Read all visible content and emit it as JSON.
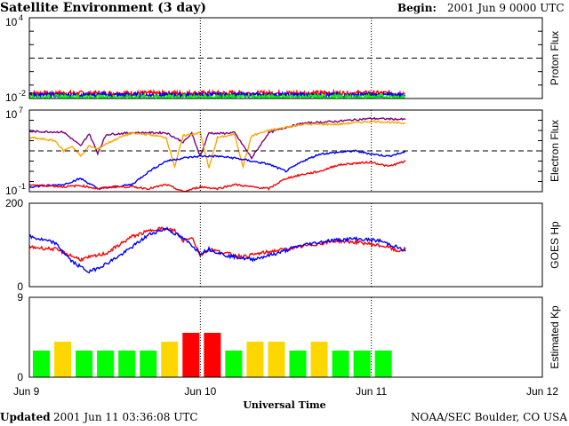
{
  "header": {
    "title": "Satellite Environment (3 day)",
    "begin_label": "Begin:",
    "begin_value": "2001 Jun 9 0000 UTC"
  },
  "footer": {
    "updated_label": "Updated",
    "updated_value": "2001 Jun 11 03:36:08 UTC",
    "credit": "NOAA/SEC Boulder, CO USA"
  },
  "colors": {
    "red": "#ff0000",
    "blue": "#0000ff",
    "green": "#00ff00",
    "orange": "#ffa500",
    "purple": "#800080",
    "kp_green": "#00ff00",
    "kp_yellow": "#ffd700",
    "kp_red": "#ff0000"
  },
  "chart_data": [
    {
      "type": "line",
      "id": "proton",
      "ylabel": "Proton Flux",
      "ylog": true,
      "ylim": [
        0.01,
        10000
      ],
      "y_tick_labels": [
        {
          "base": "10",
          "exp": "4"
        },
        {
          "base": "10",
          "exp": "-2"
        }
      ],
      "threshold": 10,
      "series": [
        {
          "color": "red",
          "level": 0.025,
          "x": [
            0,
            2.2
          ]
        },
        {
          "color": "blue",
          "level": 0.018,
          "x": [
            0,
            2.2
          ]
        },
        {
          "color": "green",
          "level": 0.013,
          "x": [
            0,
            2.2
          ]
        }
      ]
    },
    {
      "type": "line",
      "id": "electron",
      "ylabel": "Electron Flux",
      "ylog": true,
      "ylim": [
        0.1,
        10000000
      ],
      "y_tick_labels": [
        {
          "base": "10",
          "exp": "7"
        },
        {
          "base": "10",
          "exp": "-1"
        }
      ],
      "threshold": 1000,
      "series": [
        {
          "color": "purple",
          "x": [
            0,
            0.2,
            0.3,
            0.35,
            0.4,
            0.45,
            0.6,
            0.8,
            0.9,
            0.95,
            1.0,
            1.05,
            1.1,
            1.2,
            1.3,
            1.4,
            1.5,
            1.6,
            1.8,
            2.0,
            2.2
          ],
          "y": [
            80000,
            70000,
            3000,
            50000,
            600,
            40000,
            60000,
            60000,
            7000,
            50000,
            300,
            60000,
            50000,
            60000,
            200,
            60000,
            200000,
            500000,
            800000,
            1500000,
            1200000
          ]
        },
        {
          "color": "orange",
          "x": [
            0,
            0.15,
            0.2,
            0.25,
            0.3,
            0.35,
            0.4,
            0.45,
            0.55,
            0.6,
            0.7,
            0.8,
            0.85,
            0.9,
            1.0,
            1.05,
            1.1,
            1.2,
            1.25,
            1.3,
            1.4,
            1.5,
            1.6,
            1.8,
            2.0,
            2.2
          ],
          "y": [
            20000,
            10000,
            1000,
            3000,
            300,
            3000,
            1500,
            5000,
            30000,
            50000,
            40000,
            20000,
            30,
            30000,
            60000,
            20,
            20000,
            40000,
            30,
            30000,
            100000,
            200000,
            400000,
            400000,
            800000,
            500000
          ]
        },
        {
          "color": "blue",
          "x": [
            0,
            0.2,
            0.3,
            0.4,
            0.5,
            0.6,
            0.7,
            0.8,
            0.9,
            1.0,
            1.1,
            1.2,
            1.3,
            1.4,
            1.5,
            1.6,
            1.7,
            1.8,
            1.9,
            2.0,
            2.1,
            2.2
          ],
          "y": [
            0.3,
            0.5,
            2,
            0.2,
            0.3,
            0.5,
            10,
            100,
            200,
            300,
            300,
            200,
            100,
            50,
            10,
            100,
            500,
            700,
            1000,
            500,
            300,
            800
          ]
        },
        {
          "color": "red",
          "x": [
            0,
            0.2,
            0.3,
            0.4,
            0.5,
            0.6,
            0.7,
            0.8,
            0.9,
            1.0,
            1.1,
            1.2,
            1.3,
            1.4,
            1.5,
            1.6,
            1.7,
            1.8,
            1.9,
            2.0,
            2.1,
            2.2
          ],
          "y": [
            0.5,
            0.3,
            0.4,
            0.2,
            0.3,
            0.3,
            0.2,
            0.5,
            0.1,
            0.3,
            0.2,
            0.5,
            0.3,
            0.2,
            2,
            5,
            10,
            40,
            60,
            80,
            30,
            100
          ]
        }
      ]
    },
    {
      "type": "line",
      "id": "goes_hp",
      "ylabel": "GOES Hp",
      "ylim": [
        0,
        200
      ],
      "yticks": [
        0,
        200
      ],
      "series": [
        {
          "color": "red",
          "x": [
            0,
            0.15,
            0.3,
            0.45,
            0.6,
            0.75,
            0.85,
            0.9,
            0.95,
            1.0,
            1.05,
            1.15,
            1.25,
            1.35,
            1.5,
            1.65,
            1.8,
            1.95,
            2.1,
            2.15,
            2.2
          ],
          "y": [
            95,
            90,
            65,
            80,
            120,
            140,
            135,
            110,
            120,
            75,
            90,
            80,
            72,
            80,
            90,
            100,
            110,
            105,
            95,
            85,
            90
          ]
        },
        {
          "color": "blue",
          "x": [
            0,
            0.15,
            0.25,
            0.35,
            0.45,
            0.55,
            0.7,
            0.8,
            0.9,
            0.95,
            1.0,
            1.05,
            1.15,
            1.3,
            1.45,
            1.6,
            1.75,
            1.9,
            2.05,
            2.15,
            2.2
          ],
          "y": [
            120,
            105,
            60,
            35,
            55,
            80,
            125,
            140,
            115,
            100,
            80,
            90,
            75,
            65,
            80,
            100,
            110,
            115,
            110,
            95,
            85
          ]
        }
      ]
    },
    {
      "type": "bar",
      "id": "kp",
      "ylabel": "Estimated Kp",
      "ylim": [
        0,
        9
      ],
      "yticks": [
        0,
        9
      ],
      "bar_width_days": 0.125,
      "values": [
        3,
        4,
        3,
        3,
        3,
        3,
        4,
        5,
        5,
        3,
        4,
        4,
        3,
        4,
        3,
        3,
        3
      ],
      "colors": [
        "kp_green",
        "kp_yellow",
        "kp_green",
        "kp_green",
        "kp_green",
        "kp_green",
        "kp_yellow",
        "kp_red",
        "kp_red",
        "kp_green",
        "kp_yellow",
        "kp_yellow",
        "kp_green",
        "kp_yellow",
        "kp_green",
        "kp_green",
        "kp_green"
      ]
    }
  ],
  "x_axis": {
    "title": "Universal Time",
    "range_days": [
      0,
      3
    ],
    "day_marks": [
      1,
      2
    ],
    "tick_labels": [
      "Jun 9",
      "Jun 10",
      "Jun 11",
      "Jun 12"
    ]
  }
}
